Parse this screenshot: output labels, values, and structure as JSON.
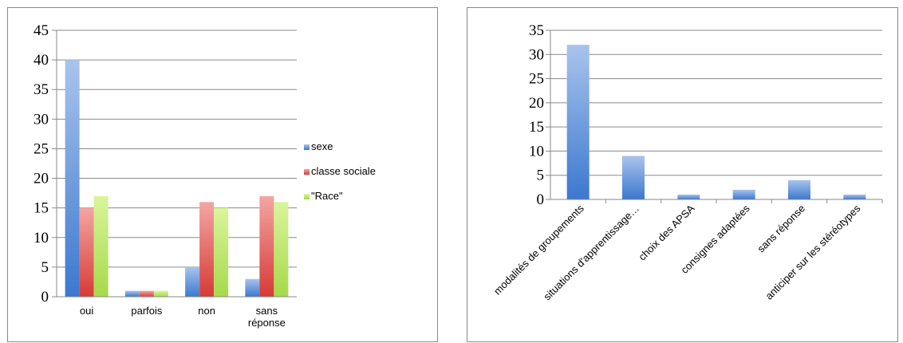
{
  "chart_data": [
    {
      "type": "bar",
      "categories": [
        "oui",
        "parfois",
        "non",
        "sans réponse"
      ],
      "category_lines": [
        [
          "oui"
        ],
        [
          "parfois"
        ],
        [
          "non"
        ],
        [
          "sans",
          "réponse"
        ]
      ],
      "series": [
        {
          "name": "sexe",
          "values": [
            40,
            1,
            5,
            3
          ],
          "color": "#4f81bd"
        },
        {
          "name": "classe sociale",
          "values": [
            15,
            1,
            16,
            17
          ],
          "color": "#c0504d"
        },
        {
          "name": "\"Race\"",
          "values": [
            17,
            1,
            15,
            16
          ],
          "color": "#9bbb59"
        }
      ],
      "ylim": [
        0,
        45
      ],
      "yticks": [
        0,
        5,
        10,
        15,
        20,
        25,
        30,
        35,
        40,
        45
      ],
      "grid": true,
      "legend_position": "right"
    },
    {
      "type": "bar",
      "categories": [
        "modalités de groupements",
        "situations d'apprentissage…",
        "choix des APSA",
        "consignes adaptées",
        "sans réponse",
        "anticiper sur les stéréotypes"
      ],
      "series": [
        {
          "values": [
            32,
            9,
            1,
            2,
            4,
            1
          ],
          "color": "#4f81bd"
        }
      ],
      "ylim": [
        0,
        35
      ],
      "yticks": [
        0,
        5,
        10,
        15,
        20,
        25,
        30,
        35
      ],
      "grid": true
    }
  ]
}
